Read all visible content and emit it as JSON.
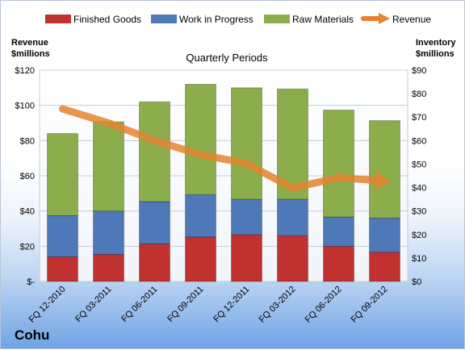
{
  "company": "Cohu",
  "chart_data": {
    "type": "bar",
    "stacked": true,
    "subtitle": "Quarterly Periods",
    "categories": [
      "FQ 12-2010",
      "FQ 03-2011",
      "FQ 06-2011",
      "FQ 09-2011",
      "FQ 12-2011",
      "FQ 03-2012",
      "FQ 06-2012",
      "FQ 09-2012"
    ],
    "y_left": {
      "title_line1": "Revenue",
      "title_line2": "$millions",
      "range": [
        0,
        120
      ],
      "ticks": [
        {
          "value": 0,
          "label": "$-"
        },
        {
          "value": 20,
          "label": "$20"
        },
        {
          "value": 40,
          "label": "$40"
        },
        {
          "value": 60,
          "label": "$60"
        },
        {
          "value": 80,
          "label": "$80"
        },
        {
          "value": 100,
          "label": "$100"
        },
        {
          "value": 120,
          "label": "$120"
        }
      ]
    },
    "y_right": {
      "title_line1": "Inventory",
      "title_line2": "$millions",
      "range": [
        0,
        90
      ],
      "ticks": [
        {
          "value": 0,
          "label": "$0"
        },
        {
          "value": 10,
          "label": "$10"
        },
        {
          "value": 20,
          "label": "$20"
        },
        {
          "value": 30,
          "label": "$30"
        },
        {
          "value": 40,
          "label": "$40"
        },
        {
          "value": 50,
          "label": "$50"
        },
        {
          "value": 60,
          "label": "$60"
        },
        {
          "value": 70,
          "label": "$70"
        },
        {
          "value": 80,
          "label": "$80"
        },
        {
          "value": 90,
          "label": "$90"
        }
      ]
    },
    "bar_series": [
      {
        "name": "Finished Goods",
        "color": "#c0312f",
        "values": [
          10.5,
          11.5,
          16,
          19,
          20,
          19.5,
          15,
          12.5
        ]
      },
      {
        "name": "Work in Progress",
        "color": "#4f78b8",
        "values": [
          17.5,
          18.5,
          18,
          18,
          15,
          15.5,
          12.5,
          14.5
        ]
      },
      {
        "name": "Raw Materials",
        "color": "#8bad4b",
        "values": [
          35,
          38,
          42.5,
          47,
          47.5,
          47,
          45.5,
          41.5
        ]
      }
    ],
    "line_series": {
      "name": "Revenue",
      "color": "#e5822f",
      "values": [
        98,
        90,
        80,
        72,
        67,
        53,
        59,
        57
      ]
    },
    "grid": true
  }
}
